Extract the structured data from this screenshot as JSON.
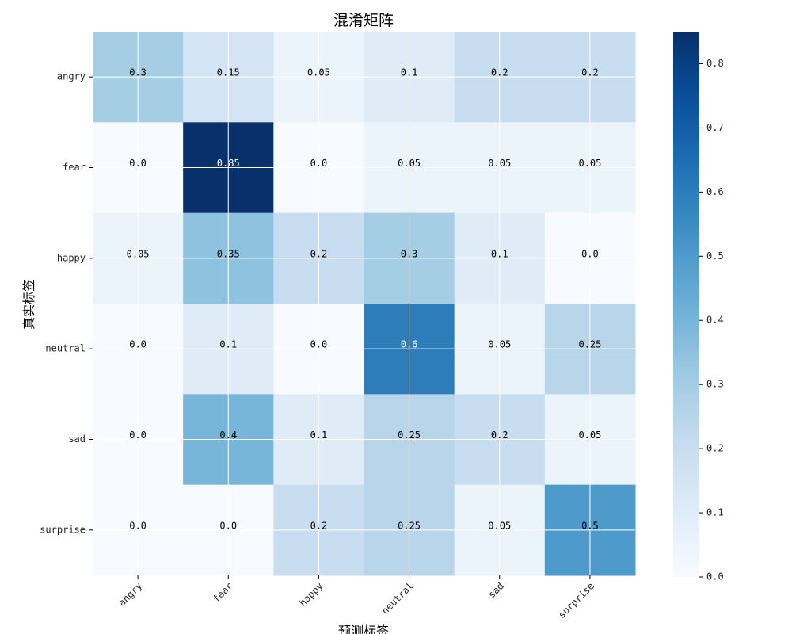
{
  "chart_data": {
    "type": "heatmap",
    "title": "混淆矩阵",
    "xlabel": "预测标签",
    "ylabel": "真实标签",
    "x_categories": [
      "angry",
      "fear",
      "happy",
      "neutral",
      "sad",
      "surprise"
    ],
    "y_categories": [
      "angry",
      "fear",
      "happy",
      "neutral",
      "sad",
      "surprise"
    ],
    "values": [
      [
        0.3,
        0.15,
        0.05,
        0.1,
        0.2,
        0.2
      ],
      [
        0.0,
        0.85,
        0.0,
        0.05,
        0.05,
        0.05
      ],
      [
        0.05,
        0.35,
        0.2,
        0.3,
        0.1,
        0.0
      ],
      [
        0.0,
        0.1,
        0.0,
        0.6,
        0.05,
        0.25
      ],
      [
        0.0,
        0.4,
        0.1,
        0.25,
        0.2,
        0.05
      ],
      [
        0.0,
        0.0,
        0.2,
        0.25,
        0.05,
        0.5
      ]
    ],
    "colormap": "Blues",
    "color_range": [
      0.0,
      0.85
    ],
    "colorbar_ticks": [
      0.0,
      0.1,
      0.2,
      0.3,
      0.4,
      0.5,
      0.6,
      0.7,
      0.8
    ],
    "grid": true
  }
}
